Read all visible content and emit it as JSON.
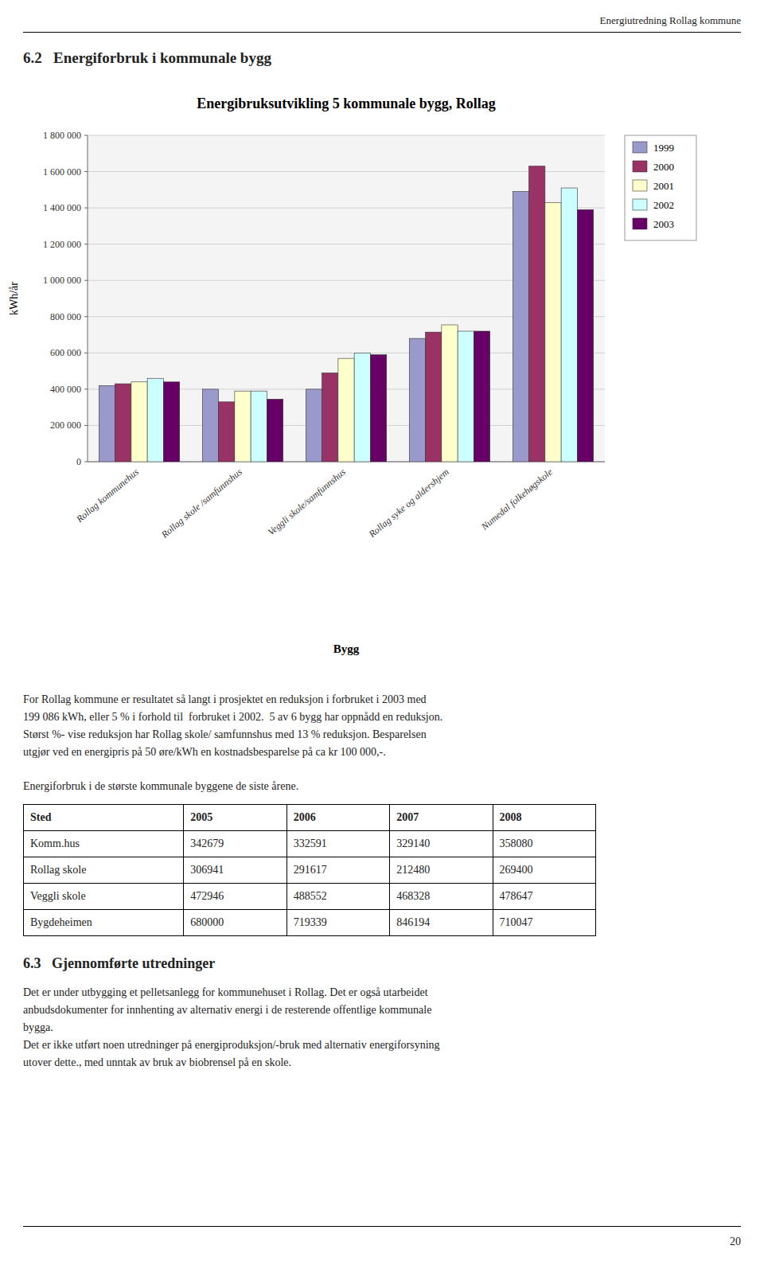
{
  "chart_data": {
    "type": "bar",
    "title": "Energibruksutvikling 5 kommunale bygg, Rollag",
    "xlabel": "Bygg",
    "ylabel": "kWh/år",
    "categories": [
      "Rollag kommunehus",
      "Rollag skole /samfunnshus",
      "Veggli skole/samfunnshus",
      "Rollag syke og aldershjem",
      "Numedal folkehøgskole"
    ],
    "series": [
      {
        "name": "1999",
        "color": "#9999cc",
        "values": [
          420000,
          400000,
          400000,
          680000,
          1490000
        ]
      },
      {
        "name": "2000",
        "color": "#993366",
        "values": [
          430000,
          330000,
          490000,
          715000,
          1630000
        ]
      },
      {
        "name": "2001",
        "color": "#ffffcc",
        "values": [
          440000,
          390000,
          570000,
          755000,
          1430000
        ]
      },
      {
        "name": "2002",
        "color": "#ccffff",
        "values": [
          460000,
          390000,
          600000,
          720000,
          1510000
        ]
      },
      {
        "name": "2003",
        "color": "#660066",
        "values": [
          440000,
          345000,
          590000,
          720000,
          1390000
        ]
      }
    ],
    "ylim": [
      0,
      1800000
    ],
    "yticks": [
      0,
      {
        "value": 200000,
        "label": "200 000"
      },
      {
        "value": 400000,
        "label": "400 000"
      },
      {
        "value": 600000,
        "label": "600 000"
      },
      {
        "value": 800000,
        "label": "800 000"
      },
      {
        "value": 1000000,
        "label": "1 000 000"
      },
      {
        "value": 1200000,
        "label": "1 200 000"
      },
      {
        "value": 1400000,
        "label": "1 400 000"
      },
      {
        "value": 1600000,
        "label": "1 600 000"
      },
      {
        "value": 1800000,
        "label": "1 800 000"
      }
    ],
    "grid": true,
    "legend": "right"
  },
  "header": "Energiutredning Rollag kommune",
  "section": "6.2   Energiforbruk i kommunale bygg",
  "paragraph_text": "For Rollag kommune er resultatet så langt i prosjektet en reduksjon i forbruket i 2003 med\n199 086 kWh, eller 5 % i forhold til  forbruket i 2002.  5 av 6 bygg har oppnådd en reduksjon.\nStørst %- vise reduksjon har Rollag skole/ samfunnshus med 13 % reduksjon. Besparelsen\nutgjør ved en energipris på 50 øre/kWh en kostnadsbesparelse på ca kr 100 000,-.",
  "table_intro": "Energiforbruk i de største kommunale byggene de siste årene.",
  "table": {
    "headers": [
      "Sted",
      "2005",
      "2006",
      "2007",
      "2008"
    ],
    "rows": [
      [
        "Komm.hus",
        "342679",
        "332591",
        "329140",
        "358080"
      ],
      [
        "Rollag skole",
        "306941",
        "291617",
        "212480",
        "269400"
      ],
      [
        "Veggli skole",
        "472946",
        "488552",
        "468328",
        "478647"
      ],
      [
        "Bygdeheimen",
        "680000",
        "719339",
        "846194",
        "710047"
      ]
    ]
  },
  "section_63": "6.3   Gjennomførte utredninger",
  "section_63_text": "Det er under utbygging et pelletsanlegg for kommunehuset i Rollag. Det er også utarbeidet\nanbudsdokumenter for innhenting av alternativ energi i de resterende offentlige kommunale\nbygga.\nDet er ikke utført noen utredninger på energiproduksjon/-bruk med alternativ energiforsyning\nutover dette., med unntak av bruk av biobrensel på en skole.",
  "page_number": "20"
}
